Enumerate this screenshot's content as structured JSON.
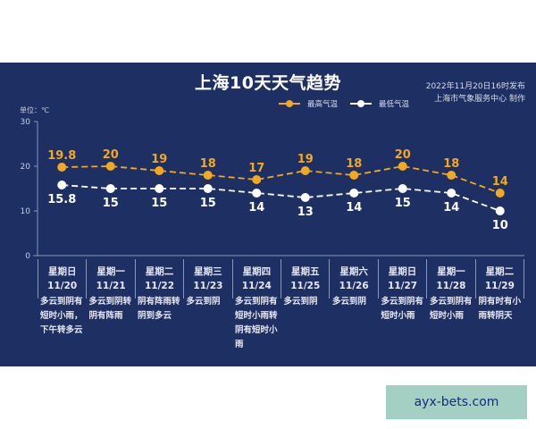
{
  "header": {
    "title": "上海10天天气趋势",
    "published": "2022年11月20日16时发布",
    "producer": "上海市气象服务中心 制作",
    "unit_label": "单位：℃"
  },
  "legend": {
    "high_label": "最高气温",
    "low_label": "最低气温"
  },
  "colors": {
    "background": "#1e2f63",
    "high": "#f2a91f",
    "low": "#ffffff",
    "axis": "#8a96bd"
  },
  "chart_data": {
    "type": "line",
    "title": "上海10天天气趋势",
    "ylabel": "单位：℃",
    "ylim": [
      0,
      30
    ],
    "yticks": [
      0,
      10,
      20,
      30
    ],
    "categories": [
      "11/20",
      "11/21",
      "11/22",
      "11/23",
      "11/24",
      "11/25",
      "11/26",
      "11/27",
      "11/28",
      "11/29"
    ],
    "series": [
      {
        "name": "最高气温",
        "values": [
          19.8,
          20,
          19,
          18,
          17,
          19,
          18,
          20,
          18,
          14
        ],
        "color": "#f2a91f",
        "style": "dashed"
      },
      {
        "name": "最低气温",
        "values": [
          15.8,
          15,
          15,
          15,
          14,
          13,
          14,
          15,
          14,
          10
        ],
        "color": "#ffffff",
        "style": "dashed"
      }
    ],
    "legend_position": "top"
  },
  "days": [
    {
      "weekday": "星期日",
      "date": "11/20",
      "weather": "多云到阴有短时小雨，下午转多云"
    },
    {
      "weekday": "星期一",
      "date": "11/21",
      "weather": "多云到阴转阴有阵雨"
    },
    {
      "weekday": "星期二",
      "date": "11/22",
      "weather": "阴有阵雨转阴到多云"
    },
    {
      "weekday": "星期三",
      "date": "11/23",
      "weather": "多云到阴"
    },
    {
      "weekday": "星期四",
      "date": "11/24",
      "weather": "多云到阴有短时小雨转阴有短时小雨"
    },
    {
      "weekday": "星期五",
      "date": "11/25",
      "weather": "多云到阴"
    },
    {
      "weekday": "星期六",
      "date": "11/26",
      "weather": "多云到阴"
    },
    {
      "weekday": "星期日",
      "date": "11/27",
      "weather": "多云到阴有短时小雨"
    },
    {
      "weekday": "星期一",
      "date": "11/28",
      "weather": "多云到阴有短时小雨"
    },
    {
      "weekday": "星期二",
      "date": "11/29",
      "weather": "阴有时有小雨转阴天"
    }
  ],
  "watermark": "ayx-bets.com"
}
